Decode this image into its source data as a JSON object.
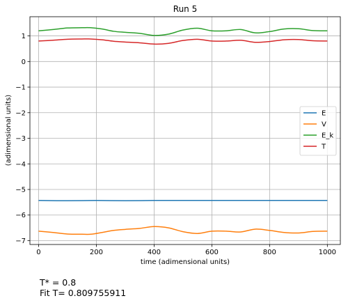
{
  "chart_data": {
    "type": "line",
    "title": "Run 5",
    "xlabel": "time (adimensional units)",
    "ylabel": "(adimensional units)",
    "xlim": [
      -30,
      1045
    ],
    "ylim": [
      -7.15,
      1.75
    ],
    "xticks": [
      0,
      200,
      400,
      600,
      800,
      1000
    ],
    "xtick_labels": [
      "0",
      "200",
      "400",
      "600",
      "800",
      "1000"
    ],
    "yticks": [
      1,
      0,
      -1,
      -2,
      -3,
      -4,
      -5,
      -6,
      -7
    ],
    "ytick_labels": [
      "1",
      "0",
      "−1",
      "−2",
      "−3",
      "−4",
      "−5",
      "−6",
      "−7"
    ],
    "grid": true,
    "legend_position": "center-right",
    "series": [
      {
        "name": "E",
        "color": "#1f77b4",
        "x": [
          0,
          100,
          200,
          300,
          400,
          500,
          600,
          700,
          800,
          900,
          1000
        ],
        "y": [
          -5.43,
          -5.44,
          -5.43,
          -5.44,
          -5.43,
          -5.43,
          -5.43,
          -5.43,
          -5.43,
          -5.43,
          -5.43
        ]
      },
      {
        "name": "V",
        "color": "#ff7f0e",
        "x": [
          0,
          50,
          100,
          150,
          180,
          220,
          260,
          300,
          350,
          400,
          450,
          500,
          550,
          600,
          650,
          700,
          750,
          800,
          850,
          900,
          950,
          1000
        ],
        "y": [
          -6.63,
          -6.68,
          -6.74,
          -6.75,
          -6.75,
          -6.68,
          -6.6,
          -6.56,
          -6.52,
          -6.45,
          -6.5,
          -6.65,
          -6.72,
          -6.63,
          -6.63,
          -6.66,
          -6.55,
          -6.6,
          -6.68,
          -6.7,
          -6.64,
          -6.63
        ]
      },
      {
        "name": "E_k",
        "color": "#2ca02c",
        "x": [
          0,
          50,
          100,
          150,
          180,
          220,
          260,
          300,
          350,
          400,
          450,
          500,
          550,
          600,
          650,
          700,
          750,
          800,
          850,
          900,
          950,
          1000
        ],
        "y": [
          1.2,
          1.25,
          1.31,
          1.32,
          1.32,
          1.27,
          1.18,
          1.14,
          1.1,
          1.02,
          1.07,
          1.23,
          1.3,
          1.2,
          1.2,
          1.25,
          1.12,
          1.17,
          1.27,
          1.28,
          1.21,
          1.2
        ]
      },
      {
        "name": "T",
        "color": "#d62728",
        "x": [
          0,
          50,
          100,
          150,
          180,
          220,
          260,
          300,
          350,
          400,
          450,
          500,
          550,
          600,
          650,
          700,
          750,
          800,
          850,
          900,
          950,
          1000
        ],
        "y": [
          0.8,
          0.83,
          0.87,
          0.88,
          0.88,
          0.85,
          0.79,
          0.76,
          0.73,
          0.68,
          0.71,
          0.82,
          0.87,
          0.8,
          0.8,
          0.83,
          0.75,
          0.78,
          0.85,
          0.86,
          0.81,
          0.8
        ]
      }
    ]
  },
  "footnotes": {
    "t_star": "T* = 0.8",
    "fit_t": "Fit T= 0.809755911"
  }
}
